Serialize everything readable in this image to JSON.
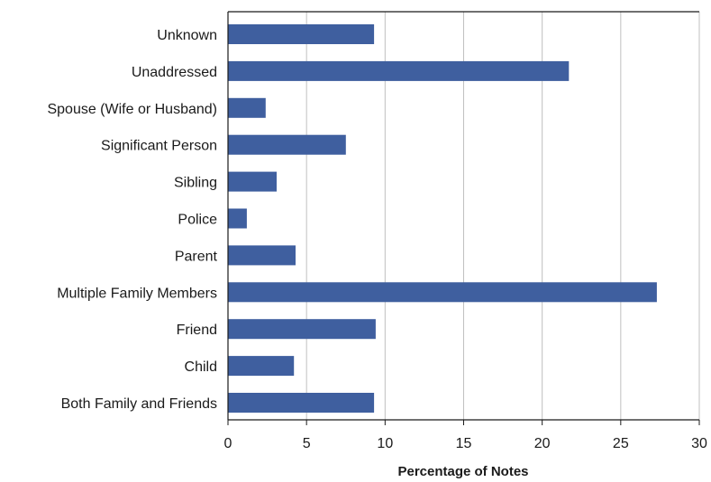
{
  "chart_data": {
    "type": "bar",
    "orientation": "horizontal",
    "title": "",
    "xlabel": "Percentage of Notes",
    "ylabel": "",
    "xlim": [
      0,
      30
    ],
    "xticks": [
      0,
      5,
      10,
      15,
      20,
      25,
      30
    ],
    "grid": "vertical",
    "categories": [
      "Unknown",
      "Unaddressed",
      "Spouse (Wife or Husband)",
      "Significant Person",
      "Sibling",
      "Police",
      "Parent",
      "Multiple Family Members",
      "Friend",
      "Child",
      "Both Family and Friends"
    ],
    "values": [
      9.3,
      21.7,
      2.4,
      7.5,
      3.1,
      1.2,
      4.3,
      27.3,
      9.4,
      4.2,
      9.3
    ],
    "colors": {
      "bar": "#3f5f9f",
      "grid": "#c0c0c0",
      "axis": "#1a1a1a"
    }
  }
}
